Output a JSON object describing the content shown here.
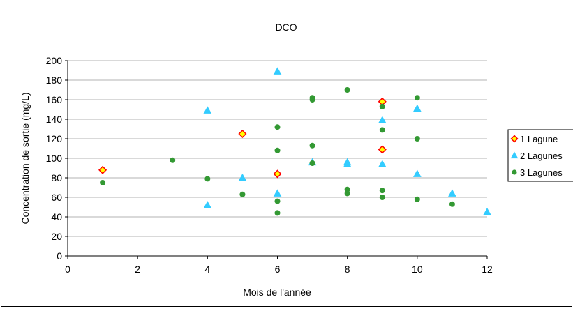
{
  "chart_data": {
    "type": "scatter",
    "title": "DCO",
    "xlabel": "Mois de l'année",
    "ylabel": "Concentration de sortie (mg/L)",
    "xlim": [
      0,
      12
    ],
    "ylim": [
      0,
      200
    ],
    "xticks": [
      0,
      2,
      4,
      6,
      8,
      10,
      12
    ],
    "yticks": [
      0,
      20,
      40,
      60,
      80,
      100,
      120,
      140,
      160,
      180,
      200
    ],
    "grid": "horizontal",
    "legend_position": "right",
    "series": [
      {
        "name": "1 Lagune",
        "marker": "diamond",
        "color": "#ffff00",
        "edge_color": "#ff0000",
        "points": [
          [
            1,
            88
          ],
          [
            5,
            125
          ],
          [
            6,
            84
          ],
          [
            9,
            158
          ],
          [
            9,
            109
          ]
        ]
      },
      {
        "name": "2 Lagunes",
        "marker": "triangle",
        "color": "#33ccff",
        "points": [
          [
            4,
            149
          ],
          [
            4,
            52
          ],
          [
            5,
            80
          ],
          [
            6,
            189
          ],
          [
            6,
            64
          ],
          [
            7,
            96
          ],
          [
            8,
            96
          ],
          [
            8,
            94
          ],
          [
            9,
            139
          ],
          [
            9,
            94
          ],
          [
            10,
            151
          ],
          [
            10,
            84
          ],
          [
            11,
            64
          ],
          [
            12,
            45
          ]
        ]
      },
      {
        "name": "3 Lagunes",
        "marker": "circle",
        "color": "#339933",
        "points": [
          [
            1,
            75
          ],
          [
            3,
            98
          ],
          [
            4,
            79
          ],
          [
            5,
            63
          ],
          [
            6,
            132
          ],
          [
            6,
            108
          ],
          [
            6,
            56
          ],
          [
            6,
            44
          ],
          [
            7,
            162
          ],
          [
            7,
            160
          ],
          [
            7,
            113
          ],
          [
            7,
            95
          ],
          [
            8,
            170
          ],
          [
            8,
            68
          ],
          [
            8,
            64
          ],
          [
            9,
            153
          ],
          [
            9,
            129
          ],
          [
            9,
            67
          ],
          [
            9,
            60
          ],
          [
            10,
            162
          ],
          [
            10,
            120
          ],
          [
            10,
            58
          ],
          [
            11,
            53
          ]
        ]
      }
    ]
  }
}
